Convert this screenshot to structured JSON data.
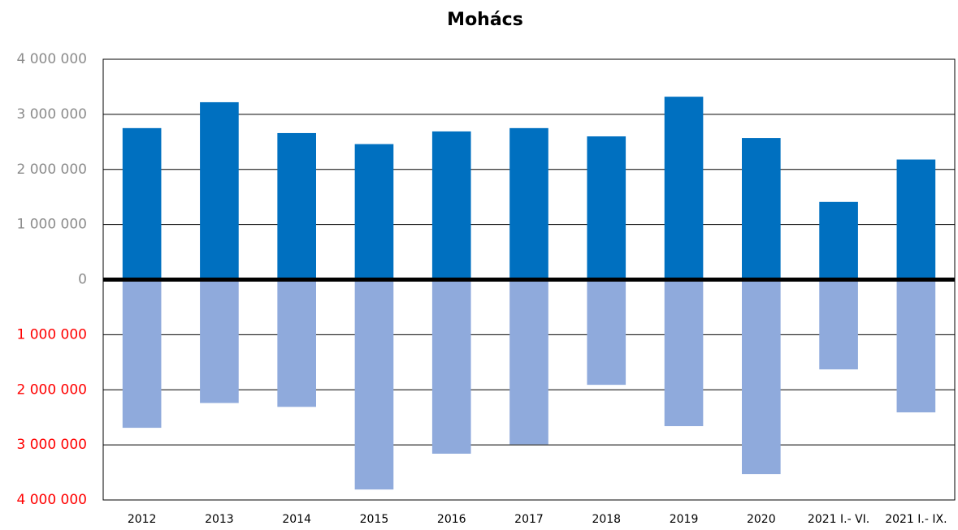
{
  "chart_data": {
    "type": "bar",
    "title": "Mohács",
    "categories": [
      "2012",
      "2013",
      "2014",
      "2015",
      "2016",
      "2017",
      "2018",
      "2019",
      "2020",
      "2021 I.- VI.",
      "2021 I.- IX."
    ],
    "series": [
      {
        "color": "#0070c0",
        "values": [
          2750000,
          3220000,
          2660000,
          2460000,
          2690000,
          2750000,
          2600000,
          3320000,
          2570000,
          1410000,
          2180000
        ]
      },
      {
        "color": "#8faadc",
        "values": [
          -2690000,
          -2240000,
          -2310000,
          -3810000,
          -3160000,
          -2990000,
          -1910000,
          -2660000,
          -3530000,
          -1630000,
          -2410000
        ]
      }
    ],
    "ylim": [
      -4000000,
      4000000
    ],
    "yticks": [
      {
        "value": -4000000,
        "label": "4 000 000"
      },
      {
        "value": -3000000,
        "label": "3 000 000"
      },
      {
        "value": -2000000,
        "label": "2 000 000"
      },
      {
        "value": -1000000,
        "label": "1 000 000"
      },
      0,
      {
        "value": 1000000,
        "label": "1 000 000"
      },
      {
        "value": 2000000,
        "label": "2 000 000"
      },
      {
        "value": 3000000,
        "label": "3 000 000"
      },
      {
        "value": 4000000,
        "label": "4 000 000"
      }
    ],
    "grid": true
  }
}
